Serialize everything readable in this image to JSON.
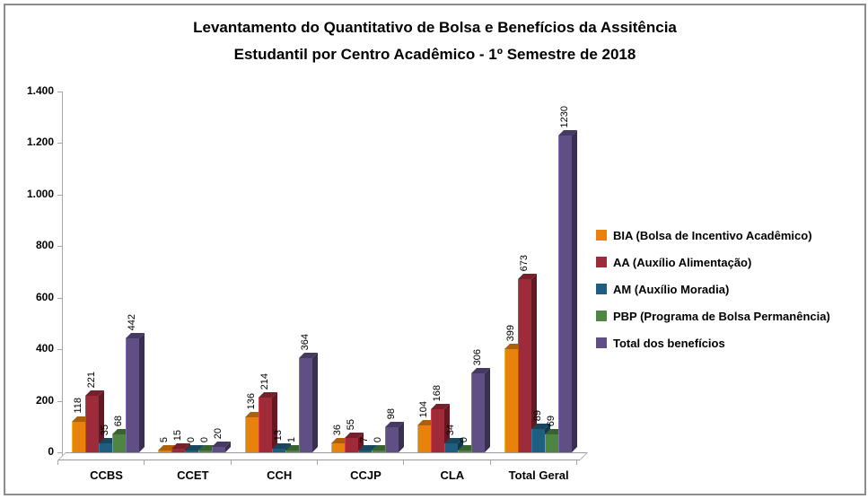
{
  "chart_data": {
    "type": "bar",
    "style": "3d-clustered-column",
    "title_line1": "Levantamento do Quantitativo de Bolsa e Benefícios da Assitência",
    "title_line2": "Estudantil  por Centro Acadêmico - 1º Semestre de 2018",
    "categories": [
      "CCBS",
      "CCET",
      "CCH",
      "CCJP",
      "CLA",
      "Total Geral"
    ],
    "series": [
      {
        "name": "BIA (Bolsa de Incentivo Acadêmico)",
        "color": "#E8820D",
        "values": [
          118,
          5,
          136,
          36,
          104,
          399
        ]
      },
      {
        "name": "AA (Auxílio Alimentação)",
        "color": "#9E2B3A",
        "values": [
          221,
          15,
          214,
          55,
          168,
          673
        ]
      },
      {
        "name": "AM (Auxílio Moradia)",
        "color": "#1F5E7E",
        "values": [
          35,
          0,
          13,
          7,
          34,
          89
        ]
      },
      {
        "name": "PBP (Programa de Bolsa Permanência)",
        "color": "#4E8542",
        "values": [
          68,
          0,
          1,
          0,
          0,
          69
        ]
      },
      {
        "name": "Total dos benefícios",
        "color": "#5F4F84",
        "values": [
          442,
          20,
          364,
          98,
          306,
          1230
        ]
      }
    ],
    "xlabel": "",
    "ylabel": "",
    "ylim": [
      0,
      1400
    ],
    "y_tick_labels": [
      "0",
      "200",
      "400",
      "600",
      "800",
      "1.000",
      "1.200",
      "1.400"
    ],
    "y_tick_values": [
      0,
      200,
      400,
      600,
      800,
      1000,
      1200,
      1400
    ],
    "grid": false,
    "legend_position": "right",
    "data_labels": "rotated-vertical"
  }
}
